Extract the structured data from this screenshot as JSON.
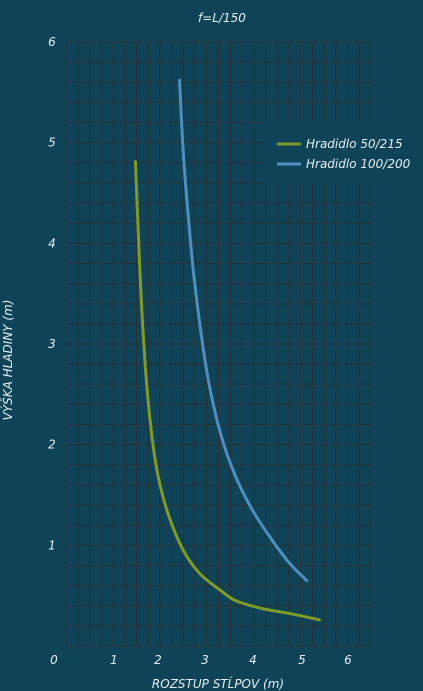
{
  "chart_data": {
    "type": "line",
    "title": "f=L/150",
    "xlabel": "ROZSTUP STĹPOV (m)",
    "ylabel": "VÝŠKA HLADINY (m)",
    "xlim": [
      0,
      6.5
    ],
    "ylim": [
      0,
      6
    ],
    "x_ticks": [
      0,
      1,
      2,
      3,
      4,
      5,
      6
    ],
    "y_ticks": [
      1,
      2,
      3,
      4,
      5,
      6
    ],
    "grid": true,
    "legend_position": "right",
    "series": [
      {
        "name": "Hradidlo 50/215",
        "color": "#7f9a2a",
        "x": [
          1.48,
          1.55,
          1.62,
          1.72,
          1.84,
          1.98,
          2.2,
          2.5,
          2.85,
          3.3,
          3.62,
          4.2,
          4.8,
          5.4
        ],
        "y": [
          4.81,
          4.0,
          3.3,
          2.6,
          2.05,
          1.65,
          1.28,
          0.95,
          0.72,
          0.55,
          0.45,
          0.37,
          0.32,
          0.26
        ]
      },
      {
        "name": "Hradidlo 100/200",
        "color": "#4f8fbf",
        "x": [
          2.42,
          2.5,
          2.6,
          2.72,
          2.88,
          3.05,
          3.3,
          3.6,
          3.95,
          4.35,
          4.75,
          5.13
        ],
        "y": [
          5.62,
          4.9,
          4.3,
          3.7,
          3.1,
          2.6,
          2.1,
          1.7,
          1.37,
          1.08,
          0.83,
          0.65
        ]
      }
    ]
  }
}
